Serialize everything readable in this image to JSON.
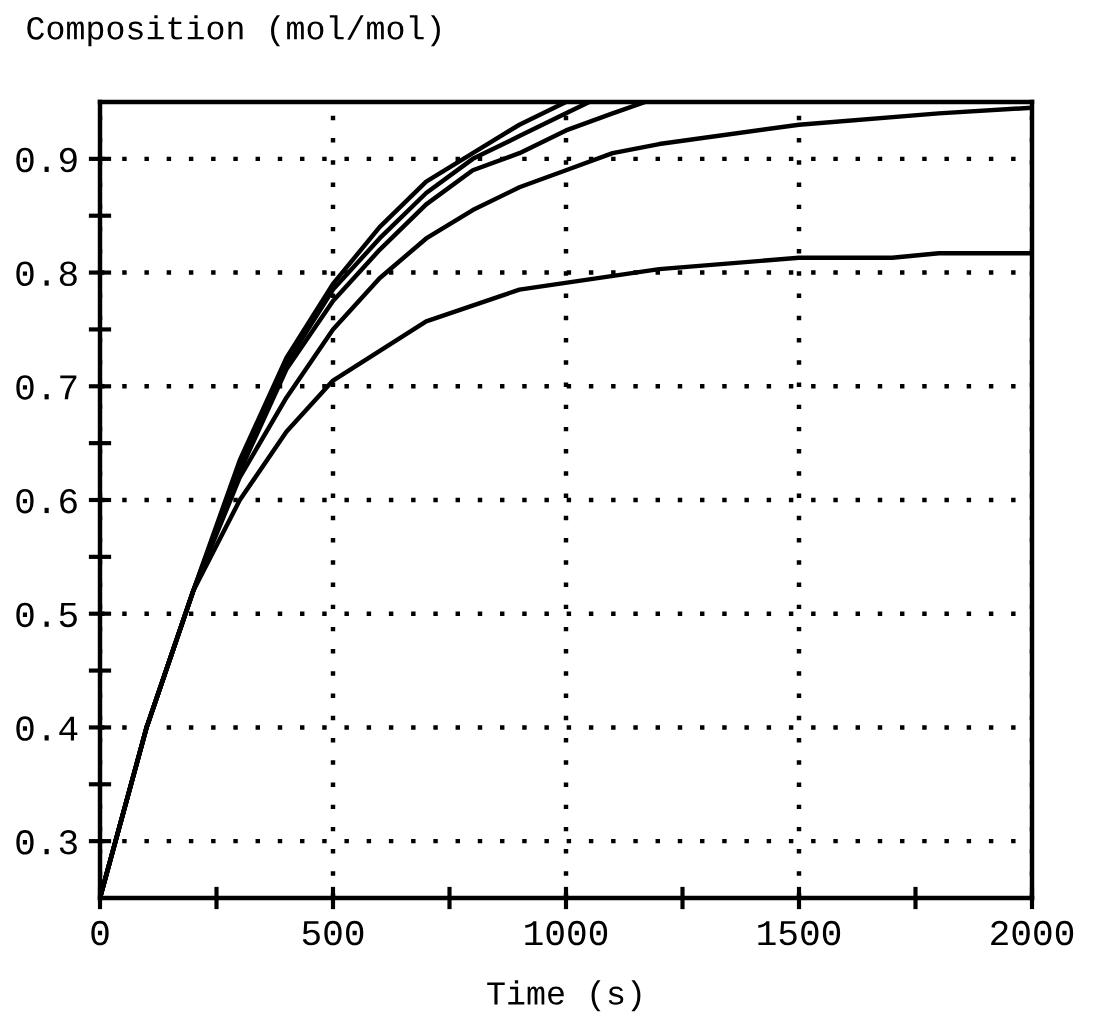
{
  "chart_data": {
    "type": "line",
    "ylabel": "Composition (mol/mol)",
    "xlabel": "Time (s)",
    "xlim": [
      0,
      2000
    ],
    "ylim": [
      0.25,
      0.95
    ],
    "xticks": [
      0,
      {
        "value": 250,
        "label": null
      },
      500,
      {
        "value": 750,
        "label": null
      },
      1000,
      {
        "value": 1250,
        "label": null
      },
      1500,
      {
        "value": 1750,
        "label": null
      },
      2000
    ],
    "yticks": [
      {
        "value": 0.3,
        "label": "0.3"
      },
      {
        "value": 0.35,
        "label": null
      },
      {
        "value": 0.4,
        "label": "0.4"
      },
      {
        "value": 0.45,
        "label": null
      },
      {
        "value": 0.5,
        "label": "0.5"
      },
      {
        "value": 0.55,
        "label": null
      },
      {
        "value": 0.6,
        "label": "0.6"
      },
      {
        "value": 0.65,
        "label": null
      },
      {
        "value": 0.7,
        "label": "0.7"
      },
      {
        "value": 0.75,
        "label": null
      },
      {
        "value": 0.8,
        "label": "0.8"
      },
      {
        "value": 0.85,
        "label": null
      },
      {
        "value": 0.9,
        "label": "0.9"
      }
    ],
    "grid": true,
    "marker": "none",
    "line_style": "solid",
    "series": [
      {
        "color": "#000000",
        "x": [
          0,
          100,
          200,
          300,
          400,
          500,
          600,
          700,
          800,
          900,
          1000
        ],
        "values": [
          0.25,
          0.4,
          0.52,
          0.635,
          0.725,
          0.79,
          0.84,
          0.88,
          0.905,
          0.93,
          0.95
        ]
      },
      {
        "color": "#000000",
        "x": [
          0,
          100,
          200,
          300,
          400,
          500,
          600,
          700,
          800,
          900,
          1000,
          1050
        ],
        "values": [
          0.25,
          0.4,
          0.52,
          0.63,
          0.72,
          0.785,
          0.83,
          0.87,
          0.9,
          0.92,
          0.94,
          0.95
        ]
      },
      {
        "color": "#000000",
        "x": [
          0,
          100,
          200,
          300,
          400,
          500,
          600,
          700,
          800,
          900,
          1000,
          1100,
          1170
        ],
        "values": [
          0.25,
          0.4,
          0.52,
          0.625,
          0.715,
          0.775,
          0.82,
          0.86,
          0.89,
          0.905,
          0.925,
          0.94,
          0.95
        ]
      },
      {
        "color": "#000000",
        "x": [
          0,
          100,
          200,
          300,
          400,
          500,
          600,
          700,
          800,
          900,
          1000,
          1100,
          1200,
          1500,
          1800,
          2000
        ],
        "values": [
          0.25,
          0.4,
          0.52,
          0.62,
          0.69,
          0.75,
          0.795,
          0.83,
          0.855,
          0.875,
          0.89,
          0.905,
          0.913,
          0.93,
          0.94,
          0.945
        ]
      },
      {
        "color": "#000000",
        "x": [
          0,
          100,
          200,
          300,
          400,
          500,
          700,
          900,
          1200,
          1500,
          1700,
          1800,
          2000
        ],
        "values": [
          0.25,
          0.4,
          0.52,
          0.6,
          0.66,
          0.705,
          0.757,
          0.785,
          0.803,
          0.813,
          0.813,
          0.817,
          0.817
        ]
      }
    ]
  }
}
